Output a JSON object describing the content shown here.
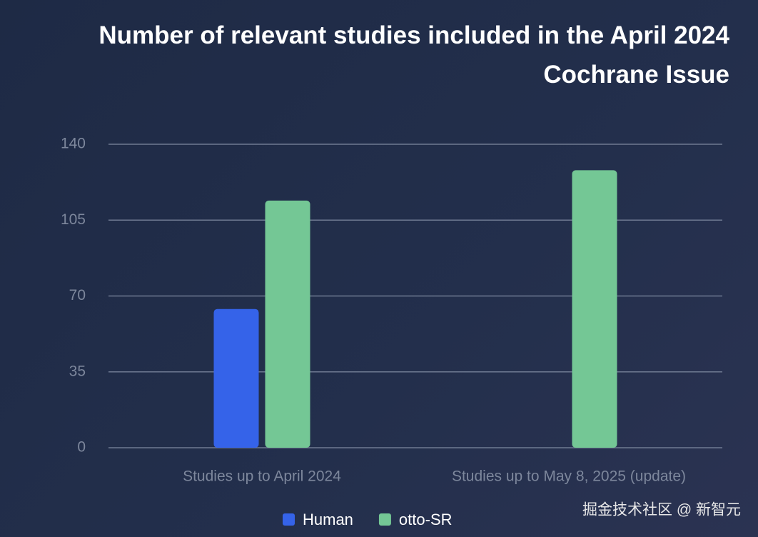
{
  "chart_data": {
    "type": "bar",
    "title": "Number of relevant studies included in the April 2024 Cochrane Issue",
    "categories": [
      "Studies up to April 2024",
      "Studies up to May 8, 2025 (update)"
    ],
    "series": [
      {
        "name": "Human",
        "color": "#3563e9",
        "values": [
          64,
          null
        ]
      },
      {
        "name": "otto-SR",
        "color": "#74c795",
        "values": [
          114,
          128
        ]
      }
    ],
    "ylim": [
      0,
      140
    ],
    "yticks": [
      0,
      35,
      70,
      105,
      140
    ],
    "grid": true,
    "legend": "bottom",
    "watermark": "掘金技术社区 @ 新智元"
  }
}
